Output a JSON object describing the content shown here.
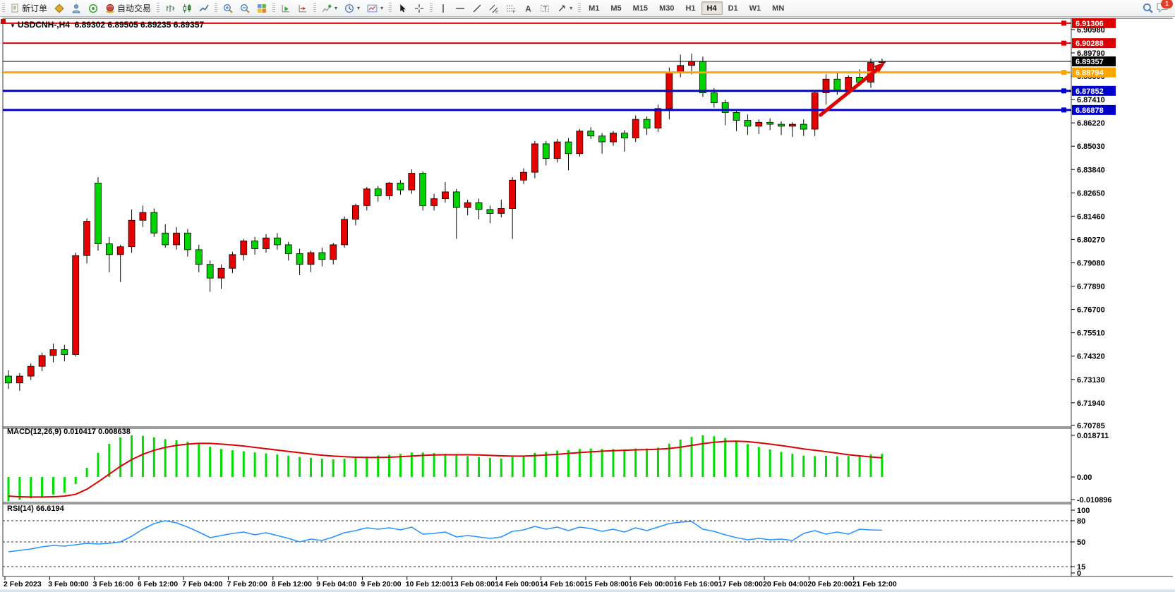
{
  "toolbar": {
    "new_order_label": "新订单",
    "autotrade_label": "自动交易",
    "timeframes": [
      "M1",
      "M5",
      "M15",
      "M30",
      "H1",
      "H4",
      "D1",
      "W1",
      "MN"
    ],
    "active_timeframe": "H4",
    "notification_badge": "1"
  },
  "chart_data": {
    "type": "candlestick",
    "title": "USDCNH-,H4",
    "ohlc_text": "6.89302 6.89505 6.89235 6.89357",
    "symbol": "USDCNH-",
    "timeframe": "H4",
    "current_bar": {
      "open": 6.89302,
      "high": 6.89505,
      "low": 6.89235,
      "close": 6.89357
    },
    "up_color": "#e60000",
    "down_color": "#00d400",
    "price_axis_ticks": [
      "6.90980",
      "6.89790",
      "6.88600",
      "6.87410",
      "6.86220",
      "6.85030",
      "6.83840",
      "6.82650",
      "6.81460",
      "6.80270",
      "6.79080",
      "6.77890",
      "6.76700",
      "6.75510",
      "6.74320",
      "6.73130",
      "6.71940",
      "6.70785"
    ],
    "price_lines": [
      {
        "label": "6.91306",
        "price": 6.91306,
        "color": "#dd0000",
        "width": 2,
        "type": "resistance"
      },
      {
        "label": "6.90288",
        "price": 6.90288,
        "color": "#dd0000",
        "width": 2,
        "type": "resistance"
      },
      {
        "label": "6.89357",
        "price": 6.89357,
        "color": "#000000",
        "width": 1,
        "type": "current"
      },
      {
        "label": "6.88794",
        "price": 6.88794,
        "color": "#ffa500",
        "width": 3,
        "type": "level"
      },
      {
        "label": "6.87852",
        "price": 6.87852,
        "color": "#0000cc",
        "width": 3,
        "type": "support"
      },
      {
        "label": "6.86878",
        "price": 6.86878,
        "color": "#0000cc",
        "width": 3,
        "type": "support"
      }
    ],
    "trend_arrow": {
      "bar_from": 72.5,
      "price_from": 6.8662,
      "bar_to": 78.3,
      "price_to": 6.8932,
      "color": "#dd0000"
    },
    "time_labels": [
      "2 Feb 2023",
      "3 Feb 00:00",
      "3 Feb 16:00",
      "6 Feb 12:00",
      "7 Feb 04:00",
      "7 Feb 20:00",
      "8 Feb 12:00",
      "9 Feb 04:00",
      "9 Feb 20:00",
      "10 Feb 12:00",
      "13 Feb 08:00",
      "14 Feb 00:00",
      "14 Feb 16:00",
      "15 Feb 08:00",
      "16 Feb 00:00",
      "16 Feb 16:00",
      "17 Feb 08:00",
      "20 Feb 04:00",
      "20 Feb 20:00",
      "21 Feb 12:00"
    ],
    "candles": [
      [
        6.733,
        6.736,
        6.7265,
        6.7295
      ],
      [
        6.7295,
        6.7345,
        6.7255,
        6.733
      ],
      [
        6.733,
        6.7395,
        6.731,
        6.738
      ],
      [
        6.738,
        6.745,
        6.7355,
        6.7435
      ],
      [
        6.7435,
        6.7495,
        6.74,
        6.7465
      ],
      [
        6.7465,
        6.749,
        6.7405,
        6.744
      ],
      [
        6.744,
        6.796,
        6.743,
        6.7945
      ],
      [
        6.7945,
        6.8135,
        6.7905,
        6.812
      ],
      [
        6.8315,
        6.8345,
        6.797,
        6.8005
      ],
      [
        6.8005,
        6.804,
        6.786,
        6.795
      ],
      [
        6.795,
        6.8,
        6.781,
        6.799
      ],
      [
        6.799,
        6.818,
        6.796,
        6.8125
      ],
      [
        6.8125,
        6.82,
        6.809,
        6.8165
      ],
      [
        6.8165,
        6.8185,
        6.804,
        6.806
      ],
      [
        6.806,
        6.8105,
        6.7985,
        6.8
      ],
      [
        6.8,
        6.809,
        6.7975,
        6.806
      ],
      [
        6.806,
        6.808,
        6.794,
        6.7975
      ],
      [
        6.7975,
        6.8,
        6.786,
        6.79
      ],
      [
        6.79,
        6.792,
        6.776,
        6.783
      ],
      [
        6.783,
        6.79,
        6.7775,
        6.788
      ],
      [
        6.788,
        6.7965,
        6.7855,
        6.795
      ],
      [
        6.795,
        6.803,
        6.792,
        6.802
      ],
      [
        6.802,
        6.804,
        6.795,
        6.798
      ],
      [
        6.798,
        6.8055,
        6.796,
        6.8035
      ],
      [
        6.8035,
        6.806,
        6.7975,
        6.8
      ],
      [
        6.8,
        6.8015,
        6.792,
        6.7955
      ],
      [
        6.7955,
        6.798,
        6.7845,
        6.79
      ],
      [
        6.79,
        6.797,
        6.786,
        6.796
      ],
      [
        6.796,
        6.7985,
        6.789,
        6.7925
      ],
      [
        6.7925,
        6.801,
        6.79,
        6.8
      ],
      [
        6.8,
        6.8145,
        6.7985,
        6.813
      ],
      [
        6.813,
        6.821,
        6.81,
        6.82
      ],
      [
        6.82,
        6.8295,
        6.8175,
        6.8285
      ],
      [
        6.8285,
        6.83,
        6.822,
        6.825
      ],
      [
        6.825,
        6.832,
        6.823,
        6.8315
      ],
      [
        6.8315,
        6.833,
        6.8255,
        6.828
      ],
      [
        6.828,
        6.8385,
        6.826,
        6.8365
      ],
      [
        6.8365,
        6.8375,
        6.8175,
        6.82
      ],
      [
        6.82,
        6.826,
        6.8175,
        6.8235
      ],
      [
        6.8235,
        6.832,
        6.8215,
        6.827
      ],
      [
        6.827,
        6.8285,
        6.803,
        6.819
      ],
      [
        6.819,
        6.823,
        6.815,
        6.8215
      ],
      [
        6.8215,
        6.8235,
        6.813,
        6.818
      ],
      [
        6.818,
        6.82,
        6.811,
        6.816
      ],
      [
        6.816,
        6.823,
        6.814,
        6.8185
      ],
      [
        6.8185,
        6.8345,
        6.803,
        6.833
      ],
      [
        6.833,
        6.839,
        6.831,
        6.837
      ],
      [
        6.837,
        6.853,
        6.834,
        6.8515
      ],
      [
        6.8515,
        6.853,
        6.8405,
        6.844
      ],
      [
        6.844,
        6.854,
        6.842,
        6.8525
      ],
      [
        6.8525,
        6.8545,
        6.838,
        6.8465
      ],
      [
        6.8465,
        6.859,
        6.845,
        6.858
      ],
      [
        6.858,
        6.86,
        6.854,
        6.8555
      ],
      [
        6.8555,
        6.857,
        6.8465,
        6.8525
      ],
      [
        6.8525,
        6.858,
        6.8505,
        6.857
      ],
      [
        6.857,
        6.8585,
        6.8475,
        6.8545
      ],
      [
        6.8545,
        6.866,
        6.8525,
        6.864
      ],
      [
        6.864,
        6.8655,
        6.856,
        6.8595
      ],
      [
        6.8595,
        6.8715,
        6.8575,
        6.8695
      ],
      [
        6.8695,
        6.8905,
        6.864,
        6.888
      ],
      [
        6.888,
        6.897,
        6.8855,
        6.8915
      ],
      [
        6.8915,
        6.8975,
        6.887,
        6.8935
      ],
      [
        6.8935,
        6.896,
        6.8755,
        6.8775
      ],
      [
        6.8775,
        6.88,
        6.87,
        6.8725
      ],
      [
        6.8725,
        6.874,
        6.861,
        6.8675
      ],
      [
        6.8675,
        6.869,
        6.858,
        6.8635
      ],
      [
        6.8635,
        6.8665,
        6.856,
        6.8605
      ],
      [
        6.8605,
        6.864,
        6.8565,
        6.8625
      ],
      [
        6.8625,
        6.8645,
        6.8585,
        6.8615
      ],
      [
        6.8615,
        6.863,
        6.856,
        6.8605
      ],
      [
        6.8605,
        6.8625,
        6.855,
        6.8615
      ],
      [
        6.8615,
        6.864,
        6.8555,
        6.859
      ],
      [
        6.859,
        6.879,
        6.8555,
        6.8775
      ],
      [
        6.8775,
        6.887,
        6.8715,
        6.8845
      ],
      [
        6.8845,
        6.8875,
        6.8765,
        6.879
      ],
      [
        6.879,
        6.8865,
        6.8775,
        6.8855
      ],
      [
        6.8855,
        6.8895,
        6.881,
        6.883
      ],
      [
        6.883,
        6.895,
        6.88,
        6.893
      ],
      [
        6.89302,
        6.89505,
        6.89235,
        6.89357
      ]
    ],
    "macd": {
      "label": "MACD(12,26,9) 0.010417 0.008638",
      "params": "12,26,9",
      "main_value": 0.010417,
      "signal_current": 0.008638,
      "axis_values": [
        0.018711,
        0,
        -0.010896
      ],
      "axis_labels": [
        "0.018711",
        "0.00",
        "-0.010896"
      ],
      "histogram_color": "#00dd00",
      "signal_color": "#dd0000",
      "histogram": [
        -0.0109,
        -0.0102,
        -0.0096,
        -0.0089,
        -0.0079,
        -0.0071,
        -0.0032,
        0.0041,
        0.0108,
        0.0149,
        0.0178,
        0.0187,
        0.0185,
        0.0178,
        0.017,
        0.0165,
        0.0158,
        0.0148,
        0.0136,
        0.0126,
        0.012,
        0.0116,
        0.011,
        0.0106,
        0.0101,
        0.0096,
        0.009,
        0.0086,
        0.0082,
        0.008,
        0.0082,
        0.0086,
        0.0092,
        0.0096,
        0.01,
        0.0104,
        0.011,
        0.011,
        0.0107,
        0.0104,
        0.0098,
        0.0094,
        0.009,
        0.0086,
        0.0083,
        0.009,
        0.0097,
        0.0108,
        0.0113,
        0.0119,
        0.0121,
        0.0126,
        0.0128,
        0.0126,
        0.0126,
        0.0124,
        0.0128,
        0.0128,
        0.0132,
        0.015,
        0.0168,
        0.018,
        0.0187,
        0.0183,
        0.0175,
        0.0163,
        0.0148,
        0.0135,
        0.0124,
        0.0113,
        0.0104,
        0.0096,
        0.0094,
        0.0095,
        0.0093,
        0.0094,
        0.0096,
        0.0101,
        0.010417
      ],
      "signal": [
        -0.0086,
        -0.0089,
        -0.009,
        -0.009,
        -0.0089,
        -0.0086,
        -0.0078,
        -0.0055,
        -0.0022,
        0.0013,
        0.0048,
        0.0078,
        0.0102,
        0.012,
        0.0133,
        0.0142,
        0.0148,
        0.0151,
        0.0151,
        0.0148,
        0.0144,
        0.0139,
        0.0133,
        0.0127,
        0.0121,
        0.0115,
        0.0109,
        0.0103,
        0.0098,
        0.0094,
        0.0091,
        0.0089,
        0.0088,
        0.0088,
        0.0089,
        0.0091,
        0.0094,
        0.0097,
        0.0099,
        0.01,
        0.01,
        0.01,
        0.0099,
        0.0097,
        0.0095,
        0.0094,
        0.0094,
        0.0096,
        0.0099,
        0.0102,
        0.0106,
        0.011,
        0.0113,
        0.0116,
        0.0118,
        0.012,
        0.0122,
        0.0123,
        0.0125,
        0.0128,
        0.0134,
        0.0142,
        0.015,
        0.0156,
        0.016,
        0.0161,
        0.0159,
        0.0154,
        0.0148,
        0.0141,
        0.0134,
        0.0126,
        0.012,
        0.0114,
        0.0107,
        0.01,
        0.0095,
        0.009,
        0.008638
      ]
    },
    "rsi": {
      "label": "RSI(14) 66.6194",
      "period": 14,
      "current_value": 66.6194,
      "axis_labels": [
        "100",
        "80",
        "50",
        "15",
        "0"
      ],
      "axis_values": [
        100,
        80,
        50,
        15,
        0
      ],
      "dashed_levels": [
        80,
        50,
        15
      ],
      "line_color": "#2893ff",
      "values": [
        36,
        38,
        40,
        43,
        45,
        44,
        46,
        48,
        47,
        48,
        50,
        58,
        68,
        76,
        80,
        77,
        71,
        64,
        56,
        59,
        62,
        64,
        60,
        63,
        59,
        55,
        50,
        54,
        52,
        57,
        63,
        66,
        70,
        68,
        70,
        67,
        71,
        61,
        62,
        64,
        57,
        59,
        57,
        55,
        57,
        65,
        67,
        72,
        68,
        71,
        66,
        71,
        69,
        65,
        68,
        64,
        70,
        66,
        71,
        76,
        78,
        79,
        68,
        65,
        60,
        56,
        53,
        55,
        53,
        54,
        52,
        62,
        66,
        61,
        64,
        61,
        68,
        67,
        66.6194
      ]
    }
  }
}
